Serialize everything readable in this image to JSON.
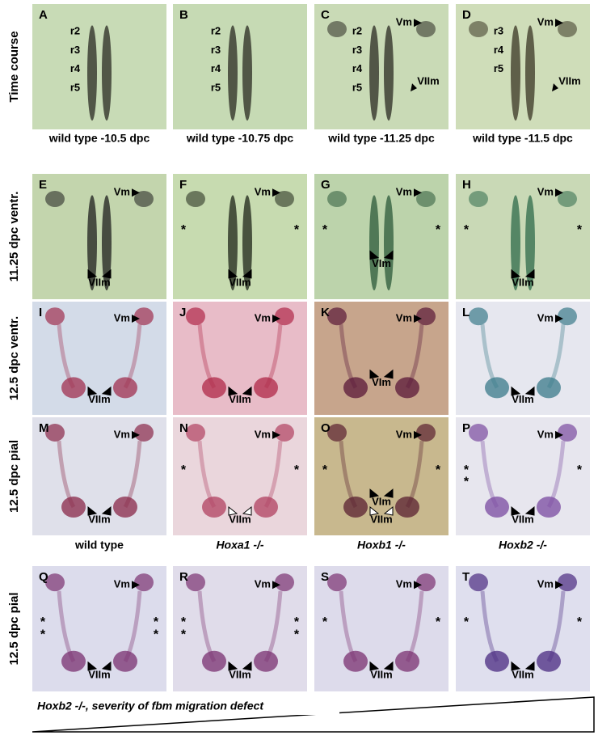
{
  "row_labels": [
    "Time course",
    "11.25 dpc ventr.",
    "12.5 dpc ventr.",
    "12.5 dpc pial",
    "12.5 dpc pial"
  ],
  "panels": [
    {
      "letter": "A",
      "labels": [
        "r2",
        "r3",
        "r4",
        "r5"
      ]
    },
    {
      "letter": "B",
      "labels": [
        "r2",
        "r3",
        "r4",
        "r5"
      ]
    },
    {
      "letter": "C",
      "labels": [
        "r2",
        "r3",
        "r4",
        "r5",
        "Vm",
        "VIIm"
      ]
    },
    {
      "letter": "D",
      "labels": [
        "r3",
        "r4",
        "r5",
        "Vm",
        "VIIm"
      ]
    },
    {
      "letter": "E",
      "labels": [
        "Vm",
        "VIIm"
      ]
    },
    {
      "letter": "F",
      "labels": [
        "Vm",
        "VIIm",
        "*",
        "*"
      ]
    },
    {
      "letter": "G",
      "labels": [
        "Vm",
        "*",
        "*",
        "VIm"
      ]
    },
    {
      "letter": "H",
      "labels": [
        "Vm",
        "*",
        "*",
        "VIIm"
      ]
    },
    {
      "letter": "I",
      "labels": [
        "Vm",
        "VIIm"
      ]
    },
    {
      "letter": "J",
      "labels": [
        "Vm",
        "VIIm"
      ]
    },
    {
      "letter": "K",
      "labels": [
        "Vm",
        "VIm"
      ]
    },
    {
      "letter": "L",
      "labels": [
        "Vm",
        "VIIm"
      ]
    },
    {
      "letter": "M",
      "labels": [
        "Vm",
        "VIIm"
      ]
    },
    {
      "letter": "N",
      "labels": [
        "Vm",
        "*",
        "*",
        "VIIm"
      ]
    },
    {
      "letter": "O",
      "labels": [
        "Vm",
        "*",
        "*",
        "VIm",
        "VIIm"
      ]
    },
    {
      "letter": "P",
      "labels": [
        "Vm",
        "*",
        "*",
        "*",
        "VIIm"
      ]
    },
    {
      "letter": "Q",
      "labels": [
        "Vm",
        "*",
        "*",
        "*",
        "*",
        "VIIm"
      ]
    },
    {
      "letter": "R",
      "labels": [
        "Vm",
        "*",
        "*",
        "*",
        "*",
        "VIIm"
      ]
    },
    {
      "letter": "S",
      "labels": [
        "Vm",
        "*",
        "*",
        "VIIm"
      ]
    },
    {
      "letter": "T",
      "labels": [
        "Vm",
        "*",
        "*",
        "VIIm"
      ]
    }
  ],
  "stage_captions": [
    "wild type -10.5 dpc",
    "wild type -10.75 dpc",
    "wild type -11.25 dpc",
    "wild type -11.5 dpc"
  ],
  "genotypes": [
    "wild type",
    "Hoxa1 -/-",
    "Hoxb1 -/-",
    "Hoxb2 -/-"
  ],
  "wedge_label": "Hoxb2 -/-, severity of fbm migration defect"
}
